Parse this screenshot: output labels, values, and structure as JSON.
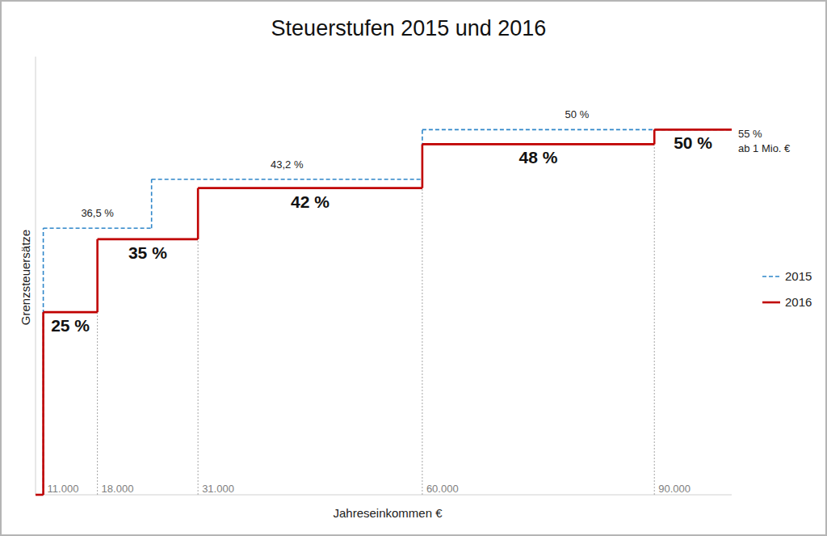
{
  "chart_data": {
    "type": "step",
    "title": "Steuerstufen 2015 und 2016",
    "x_label": "Jahreseinkommen €",
    "y_label": "Grenzsteuersätze",
    "xlim": [
      10000,
      100000
    ],
    "xticks": [
      {
        "value": 11000,
        "label": "11.000"
      },
      {
        "value": 18000,
        "label": "18.000"
      },
      {
        "value": 31000,
        "label": "31.000"
      },
      {
        "value": 60000,
        "label": "60.000"
      },
      {
        "value": 90000,
        "label": "90.000"
      }
    ],
    "ylim": [
      0,
      60
    ],
    "tick_labels": "x",
    "grid": true,
    "legend": "right",
    "data_labels": true,
    "series": [
      {
        "name": "2015",
        "color": "#2e86c9",
        "line_style": "dashed",
        "x": [
          10000,
          11000,
          25000,
          60000
        ],
        "values": [
          0,
          36.5,
          43.2,
          50
        ],
        "value_labels": [
          null,
          "36,5 %",
          "43,2 %",
          "50 %"
        ]
      },
      {
        "name": "2016",
        "color": "#c00000",
        "line_style": "solid",
        "x": [
          10000,
          11000,
          18000,
          31000,
          60000,
          90000
        ],
        "values": [
          0,
          25,
          35,
          42,
          48,
          50
        ],
        "value_labels": [
          null,
          "25 %",
          "35 %",
          "42 %",
          "48 %",
          "50 %"
        ]
      }
    ],
    "annotation": [
      "55 %",
      "ab 1 Mio. €"
    ]
  }
}
